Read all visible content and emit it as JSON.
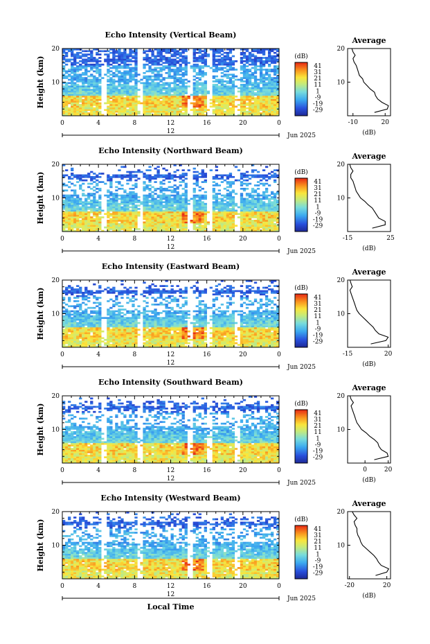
{
  "x_axis_title": "Local Time",
  "chart_data": [
    {
      "type": "heatmap",
      "title": "Echo Intensity (Vertical Beam)",
      "ylabel": "Height (km)",
      "ylim": [
        0,
        20
      ],
      "yticks": [
        "20",
        "10"
      ],
      "xticks": [
        "0",
        "4",
        "8",
        "12",
        "16",
        "20",
        "0"
      ],
      "date_label": "12",
      "month_label": "Jun 2025",
      "colorbar": {
        "unit": "(dB)",
        "ticks": [
          "41",
          "31",
          "21",
          "11",
          "1",
          "-9",
          "-19",
          "-29"
        ]
      },
      "profile": {
        "title": "Average",
        "xlabel": "(dB)",
        "xticks": [
          "-10",
          "20"
        ],
        "xlim": [
          -15,
          25
        ],
        "heights": [
          1,
          2,
          3,
          4,
          5,
          6,
          7,
          8,
          9,
          10,
          11,
          12,
          13,
          14,
          15,
          16,
          17,
          18,
          19,
          20
        ],
        "values": [
          10,
          22,
          23,
          17,
          13,
          11,
          10,
          6,
          3,
          0,
          -1,
          -4,
          -5,
          -6,
          -7,
          -9,
          -10,
          -8,
          -10,
          -11
        ]
      }
    },
    {
      "type": "heatmap",
      "title": "Echo Intensity (Northward Beam)",
      "ylabel": "Height (km)",
      "ylim": [
        0,
        20
      ],
      "yticks": [
        "20",
        "10"
      ],
      "xticks": [
        "0",
        "4",
        "8",
        "12",
        "16",
        "20",
        "0"
      ],
      "date_label": "12",
      "month_label": "Jun 2025",
      "colorbar": {
        "unit": "(dB)",
        "ticks": [
          "41",
          "31",
          "21",
          "11",
          "1",
          "-9",
          "-19",
          "-29"
        ]
      },
      "profile": {
        "title": "Average",
        "xlabel": "(dB)",
        "xticks": [
          "-15",
          "25"
        ],
        "xlim": [
          -15,
          25
        ],
        "heights": [
          1,
          2,
          3,
          4,
          5,
          6,
          7,
          8,
          9,
          10,
          11,
          12,
          13,
          14,
          15,
          16,
          17,
          18,
          19,
          20
        ],
        "values": [
          8,
          20,
          20,
          14,
          12,
          10,
          8,
          4,
          1,
          -3,
          -5,
          -7,
          -8,
          -9,
          -10,
          -12,
          -12,
          -10,
          -12,
          -13
        ]
      }
    },
    {
      "type": "heatmap",
      "title": "Echo Intensity (Eastward Beam)",
      "ylabel": "Height (km)",
      "ylim": [
        0,
        20
      ],
      "yticks": [
        "20",
        "10"
      ],
      "xticks": [
        "0",
        "4",
        "8",
        "12",
        "16",
        "20",
        "0"
      ],
      "date_label": "12",
      "month_label": "Jun 2025",
      "colorbar": {
        "unit": "(dB)",
        "ticks": [
          "41",
          "31",
          "21",
          "11",
          "1",
          "-9",
          "-19",
          "-29"
        ]
      },
      "profile": {
        "title": "Average",
        "xlabel": "(dB)",
        "xticks": [
          "-15",
          "20"
        ],
        "xlim": [
          -15,
          22
        ],
        "heights": [
          1,
          2,
          3,
          4,
          5,
          6,
          7,
          8,
          9,
          10,
          11,
          12,
          13,
          14,
          15,
          16,
          17,
          18,
          19,
          20
        ],
        "values": [
          5,
          18,
          20,
          12,
          9,
          7,
          4,
          1,
          -2,
          -5,
          -7,
          -8,
          -9,
          -10,
          -11,
          -12,
          -13,
          -11,
          -12,
          -13
        ]
      }
    },
    {
      "type": "heatmap",
      "title": "Echo Intensity (Southward Beam)",
      "ylabel": "Height (km)",
      "ylim": [
        0,
        20
      ],
      "yticks": [
        "20",
        "10"
      ],
      "xticks": [
        "0",
        "4",
        "8",
        "12",
        "16",
        "20",
        "0"
      ],
      "date_label": "12",
      "month_label": "Jun 2025",
      "colorbar": {
        "unit": "(dB)",
        "ticks": [
          "41",
          "31",
          "21",
          "11",
          "1",
          "-9",
          "-19",
          "-29"
        ]
      },
      "profile": {
        "title": "Average",
        "xlabel": "(dB)",
        "xticks": [
          "0",
          "20"
        ],
        "xlim": [
          -15,
          22
        ],
        "heights": [
          1,
          2,
          3,
          4,
          5,
          6,
          7,
          8,
          9,
          10,
          11,
          12,
          13,
          14,
          15,
          16,
          17,
          18,
          19,
          20
        ],
        "values": [
          8,
          20,
          19,
          14,
          12,
          11,
          8,
          4,
          1,
          -3,
          -5,
          -7,
          -8,
          -9,
          -10,
          -11,
          -12,
          -10,
          -12,
          -13
        ]
      }
    },
    {
      "type": "heatmap",
      "title": "Echo Intensity (Westward Beam)",
      "ylabel": "Height (km)",
      "ylim": [
        0,
        20
      ],
      "yticks": [
        "20",
        "10"
      ],
      "xticks": [
        "0",
        "4",
        "8",
        "12",
        "16",
        "20",
        "0"
      ],
      "date_label": "12",
      "month_label": "Jun 2025",
      "colorbar": {
        "unit": "(dB)",
        "ticks": [
          "41",
          "31",
          "21",
          "11",
          "1",
          "-9",
          "-19",
          "-29"
        ]
      },
      "profile": {
        "title": "Average",
        "xlabel": "(dB)",
        "xticks": [
          "-20",
          "20"
        ],
        "xlim": [
          -22,
          24
        ],
        "heights": [
          1,
          2,
          3,
          4,
          5,
          6,
          7,
          8,
          9,
          10,
          11,
          12,
          13,
          14,
          15,
          16,
          17,
          18,
          19,
          20
        ],
        "values": [
          8,
          20,
          22,
          14,
          11,
          9,
          6,
          2,
          -2,
          -6,
          -8,
          -9,
          -11,
          -12,
          -12,
          -14,
          -15,
          -12,
          -15,
          -17
        ]
      }
    }
  ]
}
